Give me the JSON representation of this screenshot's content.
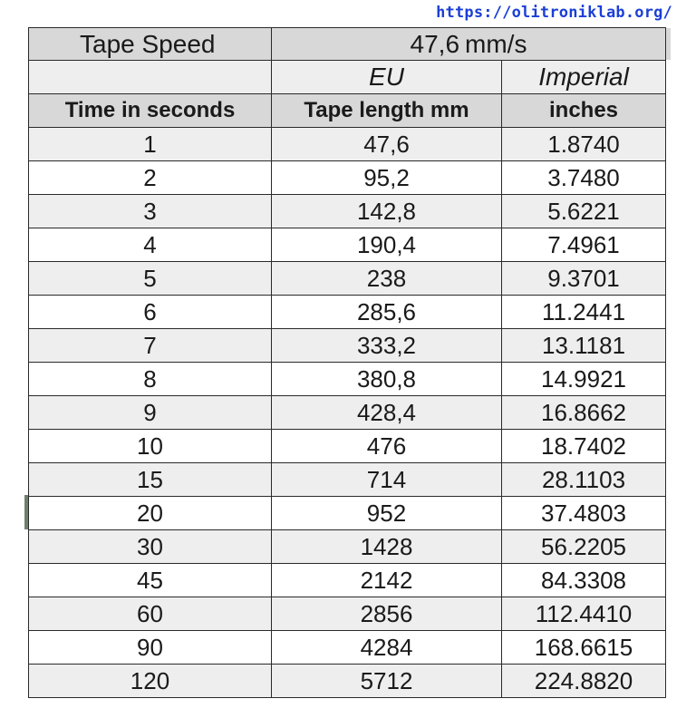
{
  "watermark": "https://olitroniklab.org/",
  "speed_row": {
    "label": "Tape Speed",
    "value": "47,6",
    "unit": "mm/s"
  },
  "region_row": {
    "eu": "EU",
    "imperial": "Imperial"
  },
  "header_row": {
    "time": "Time in seconds",
    "length": "Tape length mm",
    "inches": "inches"
  },
  "rows": [
    {
      "time": "1",
      "mm": "47,6",
      "inches": "1.8740"
    },
    {
      "time": "2",
      "mm": "95,2",
      "inches": "3.7480"
    },
    {
      "time": "3",
      "mm": "142,8",
      "inches": "5.6221"
    },
    {
      "time": "4",
      "mm": "190,4",
      "inches": "7.4961"
    },
    {
      "time": "5",
      "mm": "238",
      "inches": "9.3701"
    },
    {
      "time": "6",
      "mm": "285,6",
      "inches": "11.2441"
    },
    {
      "time": "7",
      "mm": "333,2",
      "inches": "13.1181"
    },
    {
      "time": "8",
      "mm": "380,8",
      "inches": "14.9921"
    },
    {
      "time": "9",
      "mm": "428,4",
      "inches": "16.8662"
    },
    {
      "time": "10",
      "mm": "476",
      "inches": "18.7402"
    },
    {
      "time": "15",
      "mm": "714",
      "inches": "28.1103"
    },
    {
      "time": "20",
      "mm": "952",
      "inches": "37.4803"
    },
    {
      "time": "30",
      "mm": "1428",
      "inches": "56.2205"
    },
    {
      "time": "45",
      "mm": "2142",
      "inches": "84.3308"
    },
    {
      "time": "60",
      "mm": "2856",
      "inches": "112.4410"
    },
    {
      "time": "90",
      "mm": "4284",
      "inches": "168.6615"
    },
    {
      "time": "120",
      "mm": "5712",
      "inches": "224.8820"
    }
  ]
}
